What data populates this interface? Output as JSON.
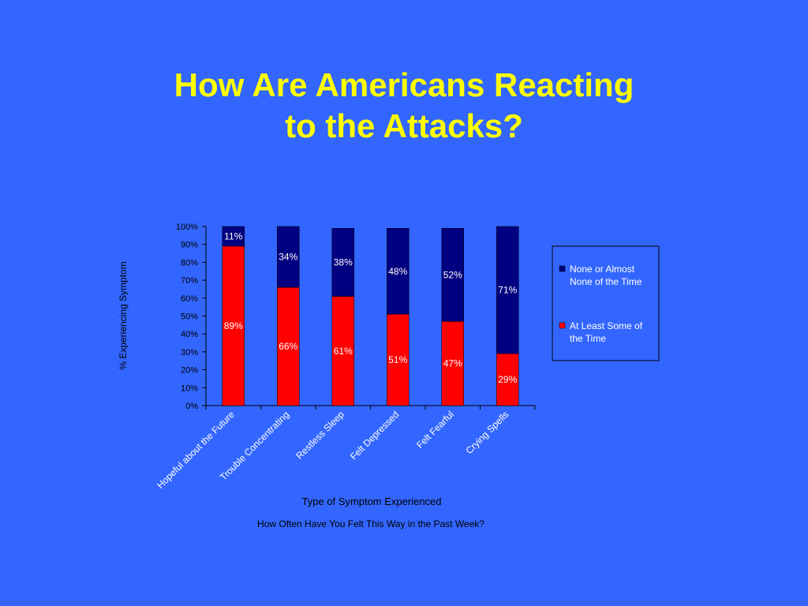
{
  "slide": {
    "title_line1": "How Are Americans Reacting",
    "title_line2": "to the Attacks?",
    "footnote": "How Often Have You Felt This Way in the Past Week?"
  },
  "colors": {
    "background": "#3366ff",
    "title": "#ffff00",
    "none_series": "#000080",
    "some_series": "#ff0000"
  },
  "chart_data": {
    "type": "bar",
    "stacked": true,
    "xlabel": "Type of Symptom Experienced",
    "ylabel": "% Experiencing Symptom",
    "ylim": [
      0,
      100
    ],
    "yticks": [
      "0%",
      "10%",
      "20%",
      "30%",
      "40%",
      "50%",
      "60%",
      "70%",
      "80%",
      "90%",
      "100%"
    ],
    "categories": [
      "Hopeful about the Future",
      "Trouble Concentrating",
      "Restless Sleep",
      "Felt Depressed",
      "Felt Fearful",
      "Crying Spells"
    ],
    "series": [
      {
        "name": "At Least Some of the Time",
        "color": "#ff0000",
        "values": [
          89,
          66,
          61,
          51,
          47,
          29
        ],
        "labels": [
          "89%",
          "66%",
          "61%",
          "51%",
          "47%",
          "29%"
        ]
      },
      {
        "name": "None or Almost None of the Time",
        "color": "#000080",
        "values": [
          11,
          34,
          38,
          48,
          52,
          71
        ],
        "labels": [
          "11%",
          "34%",
          "38%",
          "48%",
          "52%",
          "71%"
        ]
      }
    ],
    "legend": {
      "placement": "right",
      "entries": [
        {
          "line1": "None or Almost",
          "line2": "None of the Time",
          "color": "#000080"
        },
        {
          "line1": "At Least Some of",
          "line2": "the Time",
          "color": "#ff0000"
        }
      ]
    },
    "grid": false
  }
}
